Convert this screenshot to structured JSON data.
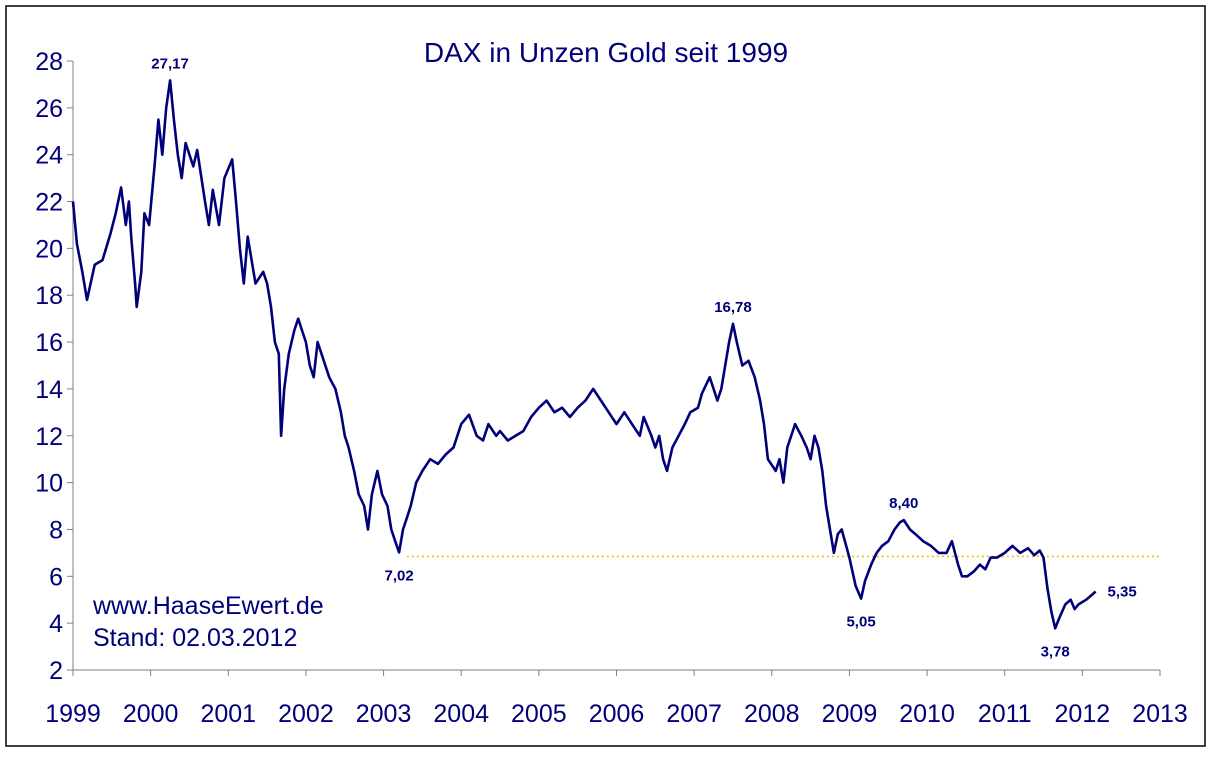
{
  "chart_data": {
    "type": "line",
    "title": "DAX in Unzen Gold seit 1999",
    "xlabel": "",
    "ylabel": "",
    "xlim": [
      1999,
      2013
    ],
    "ylim": [
      2,
      28
    ],
    "x_ticks": [
      "1999",
      "2000",
      "2001",
      "2002",
      "2003",
      "2004",
      "2005",
      "2006",
      "2007",
      "2008",
      "2009",
      "2010",
      "2011",
      "2012",
      "2013"
    ],
    "y_ticks": [
      "2",
      "4",
      "6",
      "8",
      "10",
      "12",
      "14",
      "16",
      "18",
      "20",
      "22",
      "24",
      "26",
      "28"
    ],
    "grid": false,
    "line_color": "#00007a",
    "reference_line": {
      "value": 6.85,
      "from": 2003.3,
      "to": 2013,
      "color": "#e8c000",
      "style": "dotted"
    },
    "annotations": [
      {
        "x": 2000.25,
        "y": 27.17,
        "text": "27,17",
        "position": "above"
      },
      {
        "x": 2003.2,
        "y": 7.02,
        "text": "7,02",
        "position": "below"
      },
      {
        "x": 2007.5,
        "y": 16.78,
        "text": "16,78",
        "position": "above"
      },
      {
        "x": 2009.15,
        "y": 5.05,
        "text": "5,05",
        "position": "below"
      },
      {
        "x": 2009.7,
        "y": 8.4,
        "text": "8,40",
        "position": "above"
      },
      {
        "x": 2011.65,
        "y": 3.78,
        "text": "3,78",
        "position": "below"
      },
      {
        "x": 2012.17,
        "y": 5.35,
        "text": "5,35",
        "position": "right"
      }
    ],
    "series": [
      {
        "values": [
          [
            1999.0,
            22.0
          ],
          [
            1999.05,
            20.2
          ],
          [
            1999.12,
            19.0
          ],
          [
            1999.18,
            17.8
          ],
          [
            1999.28,
            19.3
          ],
          [
            1999.38,
            19.5
          ],
          [
            1999.48,
            20.6
          ],
          [
            1999.55,
            21.5
          ],
          [
            1999.62,
            22.6
          ],
          [
            1999.68,
            21.0
          ],
          [
            1999.72,
            22.0
          ],
          [
            1999.75,
            20.5
          ],
          [
            1999.8,
            18.5
          ],
          [
            1999.82,
            17.5
          ],
          [
            1999.88,
            19.0
          ],
          [
            1999.92,
            21.5
          ],
          [
            1999.98,
            21.0
          ],
          [
            2000.05,
            23.5
          ],
          [
            2000.1,
            25.5
          ],
          [
            2000.15,
            24.0
          ],
          [
            2000.2,
            26.0
          ],
          [
            2000.25,
            27.17
          ],
          [
            2000.3,
            25.5
          ],
          [
            2000.35,
            24.0
          ],
          [
            2000.4,
            23.0
          ],
          [
            2000.45,
            24.5
          ],
          [
            2000.55,
            23.5
          ],
          [
            2000.6,
            24.2
          ],
          [
            2000.7,
            22.0
          ],
          [
            2000.75,
            21.0
          ],
          [
            2000.8,
            22.5
          ],
          [
            2000.88,
            21.0
          ],
          [
            2000.95,
            23.0
          ],
          [
            2001.05,
            23.8
          ],
          [
            2001.1,
            22.0
          ],
          [
            2001.15,
            20.0
          ],
          [
            2001.2,
            18.5
          ],
          [
            2001.25,
            20.5
          ],
          [
            2001.3,
            19.5
          ],
          [
            2001.35,
            18.5
          ],
          [
            2001.45,
            19.0
          ],
          [
            2001.5,
            18.5
          ],
          [
            2001.55,
            17.5
          ],
          [
            2001.6,
            16.0
          ],
          [
            2001.65,
            15.5
          ],
          [
            2001.68,
            12.0
          ],
          [
            2001.72,
            14.0
          ],
          [
            2001.78,
            15.5
          ],
          [
            2001.85,
            16.5
          ],
          [
            2001.9,
            17.0
          ],
          [
            2001.95,
            16.5
          ],
          [
            2002.0,
            16.0
          ],
          [
            2002.05,
            15.0
          ],
          [
            2002.1,
            14.5
          ],
          [
            2002.15,
            16.0
          ],
          [
            2002.2,
            15.5
          ],
          [
            2002.3,
            14.5
          ],
          [
            2002.38,
            14.0
          ],
          [
            2002.45,
            13.0
          ],
          [
            2002.5,
            12.0
          ],
          [
            2002.55,
            11.5
          ],
          [
            2002.62,
            10.5
          ],
          [
            2002.68,
            9.5
          ],
          [
            2002.75,
            9.0
          ],
          [
            2002.8,
            8.0
          ],
          [
            2002.85,
            9.5
          ],
          [
            2002.92,
            10.5
          ],
          [
            2002.98,
            9.5
          ],
          [
            2003.05,
            9.0
          ],
          [
            2003.1,
            8.0
          ],
          [
            2003.15,
            7.5
          ],
          [
            2003.2,
            7.02
          ],
          [
            2003.25,
            8.0
          ],
          [
            2003.3,
            8.5
          ],
          [
            2003.35,
            9.0
          ],
          [
            2003.42,
            10.0
          ],
          [
            2003.5,
            10.5
          ],
          [
            2003.6,
            11.0
          ],
          [
            2003.7,
            10.8
          ],
          [
            2003.8,
            11.2
          ],
          [
            2003.9,
            11.5
          ],
          [
            2004.0,
            12.5
          ],
          [
            2004.1,
            12.9
          ],
          [
            2004.2,
            12.0
          ],
          [
            2004.28,
            11.8
          ],
          [
            2004.35,
            12.5
          ],
          [
            2004.45,
            12.0
          ],
          [
            2004.5,
            12.2
          ],
          [
            2004.6,
            11.8
          ],
          [
            2004.7,
            12.0
          ],
          [
            2004.8,
            12.2
          ],
          [
            2004.9,
            12.8
          ],
          [
            2005.0,
            13.2
          ],
          [
            2005.1,
            13.5
          ],
          [
            2005.2,
            13.0
          ],
          [
            2005.3,
            13.2
          ],
          [
            2005.4,
            12.8
          ],
          [
            2005.5,
            13.2
          ],
          [
            2005.6,
            13.5
          ],
          [
            2005.7,
            14.0
          ],
          [
            2005.8,
            13.5
          ],
          [
            2005.9,
            13.0
          ],
          [
            2006.0,
            12.5
          ],
          [
            2006.1,
            13.0
          ],
          [
            2006.2,
            12.5
          ],
          [
            2006.3,
            12.0
          ],
          [
            2006.35,
            12.8
          ],
          [
            2006.45,
            12.0
          ],
          [
            2006.5,
            11.5
          ],
          [
            2006.55,
            12.0
          ],
          [
            2006.6,
            11.0
          ],
          [
            2006.65,
            10.5
          ],
          [
            2006.72,
            11.5
          ],
          [
            2006.8,
            12.0
          ],
          [
            2006.88,
            12.5
          ],
          [
            2006.95,
            13.0
          ],
          [
            2007.05,
            13.2
          ],
          [
            2007.1,
            13.8
          ],
          [
            2007.2,
            14.5
          ],
          [
            2007.25,
            14.0
          ],
          [
            2007.3,
            13.5
          ],
          [
            2007.35,
            14.0
          ],
          [
            2007.4,
            15.0
          ],
          [
            2007.45,
            16.0
          ],
          [
            2007.5,
            16.78
          ],
          [
            2007.55,
            16.0
          ],
          [
            2007.62,
            15.0
          ],
          [
            2007.7,
            15.2
          ],
          [
            2007.78,
            14.5
          ],
          [
            2007.85,
            13.5
          ],
          [
            2007.9,
            12.5
          ],
          [
            2007.95,
            11.0
          ],
          [
            2008.05,
            10.5
          ],
          [
            2008.1,
            11.0
          ],
          [
            2008.15,
            10.0
          ],
          [
            2008.2,
            11.5
          ],
          [
            2008.3,
            12.5
          ],
          [
            2008.38,
            12.0
          ],
          [
            2008.45,
            11.5
          ],
          [
            2008.5,
            11.0
          ],
          [
            2008.55,
            12.0
          ],
          [
            2008.6,
            11.5
          ],
          [
            2008.65,
            10.5
          ],
          [
            2008.7,
            9.0
          ],
          [
            2008.75,
            8.0
          ],
          [
            2008.8,
            7.0
          ],
          [
            2008.85,
            7.8
          ],
          [
            2008.9,
            8.0
          ],
          [
            2009.0,
            6.8
          ],
          [
            2009.08,
            5.6
          ],
          [
            2009.15,
            5.05
          ],
          [
            2009.2,
            5.8
          ],
          [
            2009.28,
            6.5
          ],
          [
            2009.35,
            7.0
          ],
          [
            2009.42,
            7.3
          ],
          [
            2009.5,
            7.5
          ],
          [
            2009.58,
            8.0
          ],
          [
            2009.65,
            8.3
          ],
          [
            2009.7,
            8.4
          ],
          [
            2009.78,
            8.0
          ],
          [
            2009.85,
            7.8
          ],
          [
            2009.95,
            7.5
          ],
          [
            2010.05,
            7.3
          ],
          [
            2010.15,
            7.0
          ],
          [
            2010.25,
            7.0
          ],
          [
            2010.32,
            7.5
          ],
          [
            2010.4,
            6.5
          ],
          [
            2010.45,
            6.0
          ],
          [
            2010.52,
            6.0
          ],
          [
            2010.6,
            6.2
          ],
          [
            2010.68,
            6.5
          ],
          [
            2010.75,
            6.3
          ],
          [
            2010.82,
            6.8
          ],
          [
            2010.9,
            6.8
          ],
          [
            2011.0,
            7.0
          ],
          [
            2011.1,
            7.3
          ],
          [
            2011.2,
            7.0
          ],
          [
            2011.3,
            7.2
          ],
          [
            2011.38,
            6.9
          ],
          [
            2011.45,
            7.1
          ],
          [
            2011.5,
            6.8
          ],
          [
            2011.55,
            5.5
          ],
          [
            2011.6,
            4.5
          ],
          [
            2011.65,
            3.78
          ],
          [
            2011.7,
            4.2
          ],
          [
            2011.78,
            4.8
          ],
          [
            2011.85,
            5.0
          ],
          [
            2011.9,
            4.6
          ],
          [
            2011.95,
            4.8
          ],
          [
            2012.05,
            5.0
          ],
          [
            2012.12,
            5.2
          ],
          [
            2012.17,
            5.35
          ]
        ]
      }
    ],
    "watermark_lines": [
      "www.HaaseEwert.de",
      "Stand: 02.03.2012"
    ]
  }
}
